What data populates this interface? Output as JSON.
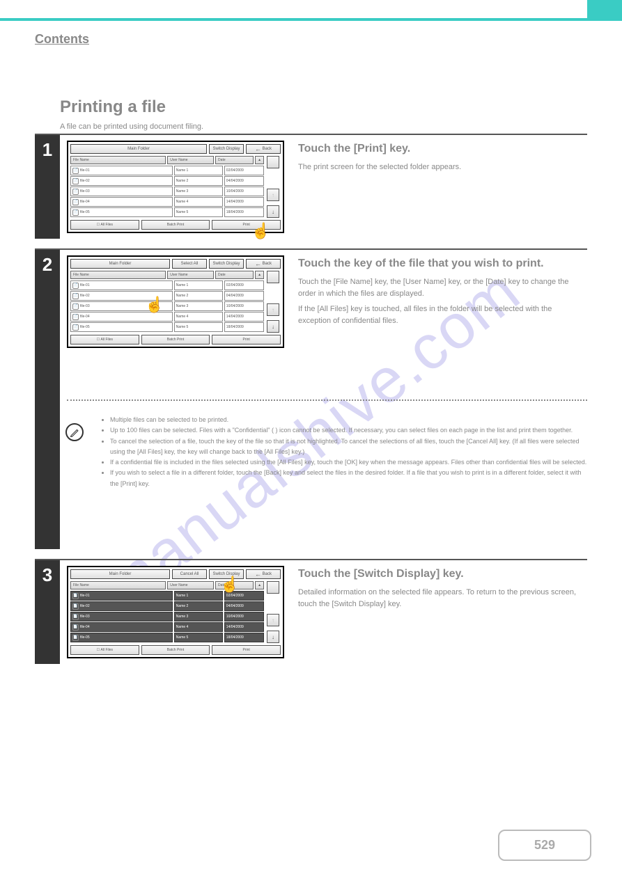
{
  "page_number": "529",
  "contents_link": "Contents",
  "watermark": "manualshive.com",
  "section_title": "Printing a file",
  "section_sub": "A file can be printed using document filing.",
  "colors": {
    "accent": "#3accc4",
    "watermark": "#7a6fd8"
  },
  "step1": {
    "no": "1",
    "heading": "Touch the [Print] key.",
    "text": "The print screen for the selected folder appears.",
    "panel": {
      "top_label": "Main Folder",
      "back": "Back",
      "switch": "Switch Display",
      "head_name": "File Name",
      "head_user": "User Name",
      "head_date": "Date",
      "rows": [
        {
          "icon": "📄",
          "name": "file-01",
          "user": "Name 1",
          "date": "02/04/2009"
        },
        {
          "icon": "📄",
          "name": "file-02",
          "user": "Name 2",
          "date": "04/04/2009"
        },
        {
          "icon": "📄",
          "name": "file-03",
          "user": "Name 3",
          "date": "10/04/2009"
        },
        {
          "icon": "📄",
          "name": "file-04",
          "user": "Name 4",
          "date": "14/04/2009"
        },
        {
          "icon": "📄",
          "name": "file-05",
          "user": "Name 5",
          "date": "18/04/2009"
        }
      ],
      "allfiles": "All Files",
      "batch": "Batch Print",
      "print": "Print"
    }
  },
  "step2": {
    "no": "2",
    "heading": "Touch the key of the file that you wish to print.",
    "text1": "Touch the [File Name] key, the [User Name] key, or the [Date] key to change the order in which the files are displayed.",
    "text2": "If the [All Files] key is touched, all files in the folder will be selected with the exception of confidential files.",
    "panel": {
      "top_label": "Main Folder",
      "back": "Back",
      "select": "Select All",
      "switch": "Switch Display",
      "head_name": "File Name",
      "head_user": "User Name",
      "head_date": "Date",
      "rows": [
        {
          "icon": "📄",
          "name": "file-01",
          "user": "Name 1",
          "date": "02/04/2009"
        },
        {
          "icon": "📄",
          "name": "file-02",
          "user": "Name 2",
          "date": "04/04/2009"
        },
        {
          "icon": "📄",
          "name": "file-03",
          "user": "Name 3",
          "date": "10/04/2009"
        },
        {
          "icon": "📄",
          "name": "file-04",
          "user": "Name 4",
          "date": "14/04/2009"
        },
        {
          "icon": "📄",
          "name": "file-05",
          "user": "Name 5",
          "date": "18/04/2009"
        }
      ],
      "allfiles": "All Files",
      "batch": "Batch Print",
      "print": "Print"
    },
    "note_lines": [
      "Multiple files can be selected to be printed.",
      "Up to 100 files can be selected. Files with a \"Confidential\" ( ) icon cannot be selected. If necessary, you can select files on each page in the list and print them together.",
      "To cancel the selection of a file, touch the key of the file so that it is not highlighted. To cancel the selections of all files, touch the [Cancel All] key. (If all files were selected using the [All Files] key, the key will change back to the [All Files] key.)",
      "If a confidential file is included in the files selected using the [All Files] key, touch the [OK] key when the message appears. Files other than confidential files will be selected.",
      "If you wish to select a file in a different folder, touch the [Back] key and select the files in the desired folder. If a file that you wish to print is in a different folder, select it with the [Print] key."
    ]
  },
  "step3": {
    "no": "3",
    "heading": "Touch the [Switch Display] key.",
    "text": "Detailed information on the selected file appears. To return to the previous screen, touch the [Switch Display] key.",
    "panel": {
      "top_label": "Main Folder",
      "back": "Back",
      "select": "Cancel All",
      "switch": "Switch Display",
      "head_name": "File Name",
      "head_user": "User Name",
      "head_date": "Date",
      "rows": [
        {
          "icon": "📄",
          "name": "file-01",
          "user": "Name 1",
          "date": "02/04/2009",
          "sel": true
        },
        {
          "icon": "📄",
          "name": "file-02",
          "user": "Name 2",
          "date": "04/04/2009",
          "sel": true
        },
        {
          "icon": "📄",
          "name": "file-03",
          "user": "Name 3",
          "date": "10/04/2009",
          "sel": true
        },
        {
          "icon": "📄",
          "name": "file-04",
          "user": "Name 4",
          "date": "14/04/2009",
          "sel": true
        },
        {
          "icon": "📄",
          "name": "file-05",
          "user": "Name 5",
          "date": "18/04/2009",
          "sel": true
        }
      ],
      "allfiles": "All Files",
      "batch": "Batch Print",
      "print": "Print"
    }
  }
}
